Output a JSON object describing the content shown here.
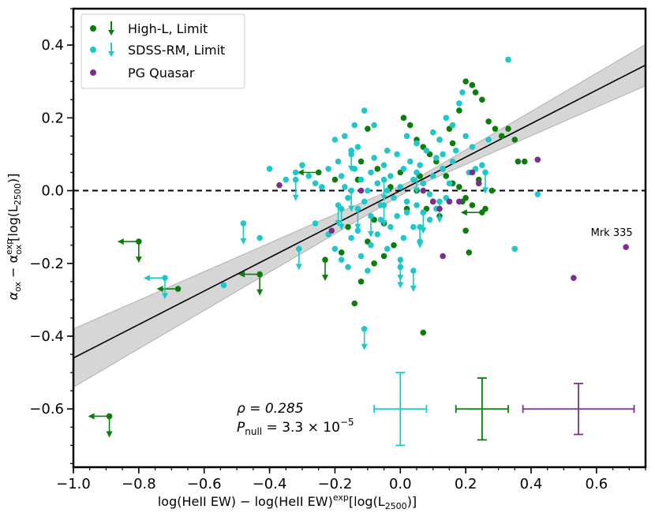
{
  "chart_data": {
    "type": "scatter",
    "xlabel": "log(HeII EW) − log(HeII EW)",
    "xlabel_sup": "exp",
    "xlabel_tail": "[log(L",
    "xlabel_sub": "2500",
    "xlabel_end": ")]",
    "ylabel_main": "α",
    "ylabel_sub1": "ox",
    "ylabel_mid": " − α",
    "ylabel_sup2": "exp",
    "ylabel_sub2": "ox",
    "ylabel_tail": "[log(L",
    "ylabel_sub3": "2500",
    "ylabel_end": ")]",
    "xlim": [
      -1.0,
      0.75
    ],
    "ylim": [
      -0.76,
      0.5
    ],
    "xticks": [
      -1.0,
      -0.8,
      -0.6,
      -0.4,
      -0.2,
      0.0,
      0.2,
      0.4,
      0.6
    ],
    "xtick_labels": [
      "−1.0",
      "−0.8",
      "−0.6",
      "−0.4",
      "−0.2",
      "0.0",
      "0.2",
      "0.4",
      "0.6"
    ],
    "yticks": [
      -0.6,
      -0.4,
      -0.2,
      0.0,
      0.2,
      0.4
    ],
    "ytick_labels": [
      "−0.6",
      "−0.4",
      "−0.2",
      "0.0",
      "0.2",
      "0.4"
    ],
    "legend": [
      {
        "label": "High-L, Limit",
        "color": "#0a7d0a"
      },
      {
        "label": "SDSS-RM, Limit",
        "color": "#1ec8c8"
      },
      {
        "label": "PG Quasar",
        "color": "#7a2f8f"
      }
    ],
    "legend_position": "top-left",
    "stats": {
      "rho_label": "ρ = 0.285",
      "p_label_main": "P",
      "p_label_sub": "null",
      "p_label_value": " = 3.3 × 10",
      "p_label_exp": "−5"
    },
    "annotations": [
      {
        "text": "Mrk 335",
        "x": 0.69,
        "y": -0.155
      }
    ],
    "fit": {
      "slope": 0.46,
      "intercept": 0.0,
      "band_halfwidth_at_edge": 0.07
    },
    "zero_line": 0.0,
    "series": [
      {
        "name": "High-L",
        "color": "#0a7d0a",
        "points": [
          [
            0.01,
            0.2
          ],
          [
            0.03,
            0.18
          ],
          [
            0.05,
            0.14
          ],
          [
            0.07,
            0.12
          ],
          [
            0.09,
            0.1
          ],
          [
            0.11,
            0.08
          ],
          [
            0.13,
            0.06
          ],
          [
            0.14,
            0.04
          ],
          [
            0.16,
            0.02
          ],
          [
            0.18,
            0.01
          ],
          [
            0.2,
            -0.02
          ],
          [
            0.22,
            -0.04
          ],
          [
            0.24,
            0.03
          ],
          [
            0.26,
            -0.05
          ],
          [
            0.28,
            0.0
          ],
          [
            0.12,
            0.14
          ],
          [
            0.15,
            0.17
          ],
          [
            0.18,
            0.22
          ],
          [
            0.2,
            0.3
          ],
          [
            0.22,
            0.29
          ],
          [
            0.23,
            0.27
          ],
          [
            0.25,
            0.25
          ],
          [
            0.27,
            0.19
          ],
          [
            0.29,
            0.17
          ],
          [
            0.31,
            0.15
          ],
          [
            0.33,
            0.17
          ],
          [
            0.35,
            0.14
          ],
          [
            0.36,
            0.08
          ],
          [
            0.38,
            0.08
          ],
          [
            0.2,
            -0.11
          ],
          [
            0.21,
            -0.17
          ],
          [
            -0.02,
            -0.15
          ],
          [
            -0.05,
            -0.18
          ],
          [
            -0.08,
            -0.2
          ],
          [
            -0.1,
            -0.14
          ],
          [
            -0.12,
            -0.25
          ],
          [
            -0.14,
            -0.31
          ],
          [
            -0.16,
            -0.1
          ],
          [
            -0.18,
            -0.17
          ],
          [
            -0.1,
            0.17
          ],
          [
            -0.12,
            0.08
          ],
          [
            -0.13,
            0.03
          ],
          [
            -0.05,
            -0.09
          ],
          [
            -0.03,
            0.01
          ],
          [
            0.0,
            0.05
          ],
          [
            0.06,
            0.04
          ],
          [
            0.08,
            -0.05
          ],
          [
            0.1,
            -0.03
          ],
          [
            0.07,
            -0.39
          ],
          [
            0.16,
            0.13
          ],
          [
            0.19,
            -0.03
          ],
          [
            0.12,
            -0.07
          ],
          [
            -0.07,
            0.06
          ],
          [
            0.02,
            -0.05
          ],
          [
            -0.2,
            0.03
          ],
          [
            -0.08,
            -0.08
          ],
          [
            0.05,
            0.0
          ]
        ],
        "limits": [
          [
            -0.8,
            -0.14,
            "both"
          ],
          [
            -0.68,
            -0.27,
            "left"
          ],
          [
            -0.43,
            -0.23,
            "both"
          ],
          [
            -0.25,
            0.05,
            "left"
          ],
          [
            -0.23,
            -0.19,
            "down"
          ],
          [
            0.25,
            -0.06,
            "left"
          ],
          [
            -0.89,
            -0.62,
            "both"
          ]
        ]
      },
      {
        "name": "SDSS-RM",
        "color": "#1ec8c8",
        "points": [
          [
            -0.4,
            0.06
          ],
          [
            -0.35,
            0.03
          ],
          [
            -0.32,
            0.05
          ],
          [
            -0.3,
            0.07
          ],
          [
            -0.28,
            0.04
          ],
          [
            -0.26,
            0.02
          ],
          [
            -0.24,
            0.01
          ],
          [
            -0.22,
            0.06
          ],
          [
            -0.2,
            0.14
          ],
          [
            -0.19,
            0.08
          ],
          [
            -0.18,
            0.04
          ],
          [
            -0.17,
            0.01
          ],
          [
            -0.16,
            -0.02
          ],
          [
            -0.15,
            0.1
          ],
          [
            -0.14,
            0.06
          ],
          [
            -0.13,
            0.12
          ],
          [
            -0.12,
            0.03
          ],
          [
            -0.11,
            -0.03
          ],
          [
            -0.1,
            0.0
          ],
          [
            -0.09,
            0.05
          ],
          [
            -0.08,
            0.09
          ],
          [
            -0.07,
            0.02
          ],
          [
            -0.06,
            -0.04
          ],
          [
            -0.05,
            0.07
          ],
          [
            -0.04,
            0.0
          ],
          [
            -0.03,
            0.04
          ],
          [
            -0.02,
            -0.02
          ],
          [
            -0.01,
            0.1
          ],
          [
            0.0,
            0.01
          ],
          [
            0.01,
            0.06
          ],
          [
            0.02,
            -0.03
          ],
          [
            0.03,
            0.08
          ],
          [
            0.04,
            0.03
          ],
          [
            0.05,
            -0.04
          ],
          [
            0.06,
            0.07
          ],
          [
            0.07,
            0.02
          ],
          [
            0.08,
            0.11
          ],
          [
            0.09,
            -0.01
          ],
          [
            0.1,
            0.04
          ],
          [
            0.11,
            0.09
          ],
          [
            0.12,
            0.14
          ],
          [
            0.13,
            0.06
          ],
          [
            0.14,
            -0.02
          ],
          [
            0.15,
            0.02
          ],
          [
            0.16,
            0.08
          ],
          [
            0.17,
            0.11
          ],
          [
            0.18,
            0.24
          ],
          [
            0.19,
            0.27
          ],
          [
            0.2,
            0.15
          ],
          [
            0.21,
            0.05
          ],
          [
            0.22,
            0.12
          ],
          [
            0.23,
            0.06
          ],
          [
            0.24,
            0.02
          ],
          [
            0.25,
            0.07
          ],
          [
            0.26,
            0.05
          ],
          [
            0.27,
            0.14
          ],
          [
            0.33,
            0.36
          ],
          [
            0.35,
            -0.16
          ],
          [
            0.42,
            -0.01
          ],
          [
            -0.54,
            -0.26
          ],
          [
            -0.43,
            -0.13
          ],
          [
            -0.26,
            -0.09
          ],
          [
            -0.22,
            -0.12
          ],
          [
            -0.2,
            -0.16
          ],
          [
            -0.18,
            -0.19
          ],
          [
            -0.16,
            -0.21
          ],
          [
            -0.15,
            -0.13
          ],
          [
            -0.13,
            -0.11
          ],
          [
            -0.12,
            -0.18
          ],
          [
            -0.1,
            -0.22
          ],
          [
            -0.09,
            -0.15
          ],
          [
            -0.07,
            -0.12
          ],
          [
            -0.06,
            -0.08
          ],
          [
            -0.04,
            -0.16
          ],
          [
            -0.03,
            -0.1
          ],
          [
            -0.01,
            -0.07
          ],
          [
            0.01,
            -0.13
          ],
          [
            0.02,
            -0.06
          ],
          [
            0.04,
            -0.1
          ],
          [
            0.06,
            -0.14
          ],
          [
            0.07,
            -0.06
          ],
          [
            0.09,
            -0.08
          ],
          [
            0.11,
            -0.05
          ],
          [
            0.13,
            0.1
          ],
          [
            0.14,
            0.2
          ],
          [
            0.16,
            0.18
          ],
          [
            0.1,
            0.16
          ],
          [
            -0.11,
            0.22
          ],
          [
            -0.08,
            0.18
          ],
          [
            -0.17,
            0.15
          ],
          [
            -0.14,
            0.18
          ],
          [
            -0.04,
            0.11
          ],
          [
            0.05,
            0.13
          ],
          [
            0.02,
            0.15
          ]
        ],
        "limits": [
          [
            -0.72,
            -0.24,
            "both"
          ],
          [
            -0.48,
            -0.09,
            "down"
          ],
          [
            -0.31,
            -0.16,
            "down"
          ],
          [
            -0.32,
            0.03,
            "down"
          ],
          [
            -0.19,
            -0.04,
            "down"
          ],
          [
            -0.18,
            -0.05,
            "down"
          ],
          [
            -0.15,
            0.0,
            "down"
          ],
          [
            -0.15,
            0.11,
            "down"
          ],
          [
            -0.13,
            -0.05,
            "down"
          ],
          [
            -0.11,
            -0.38,
            "down"
          ],
          [
            -0.09,
            -0.07,
            "down"
          ],
          [
            -0.05,
            -0.04,
            "down"
          ],
          [
            0.0,
            -0.19,
            "down"
          ],
          [
            0.0,
            -0.21,
            "down"
          ],
          [
            0.04,
            -0.22,
            "down"
          ],
          [
            0.05,
            0.05,
            "down"
          ],
          [
            0.06,
            -0.1,
            "down"
          ],
          [
            0.07,
            -0.06,
            "down"
          ],
          [
            0.12,
            -0.03,
            "down"
          ],
          [
            -0.05,
            0.03,
            "down"
          ],
          [
            0.26,
            0.05,
            "down"
          ]
        ]
      },
      {
        "name": "PG Quasar",
        "color": "#7a2f8f",
        "points": [
          [
            -0.37,
            0.015
          ],
          [
            -0.21,
            -0.11
          ],
          [
            -0.12,
            0.0
          ],
          [
            0.07,
            0.0
          ],
          [
            0.1,
            -0.03
          ],
          [
            0.12,
            -0.05
          ],
          [
            0.13,
            -0.18
          ],
          [
            0.15,
            -0.03
          ],
          [
            0.18,
            -0.03
          ],
          [
            0.22,
            0.05
          ],
          [
            0.24,
            0.02
          ],
          [
            0.42,
            0.085
          ],
          [
            0.53,
            -0.24
          ],
          [
            0.69,
            -0.155
          ]
        ]
      }
    ],
    "error_bars": [
      {
        "color": "#1ec8c8",
        "x": 0.0,
        "y": -0.6,
        "xerr": 0.08,
        "yerr": 0.1
      },
      {
        "color": "#0a7d0a",
        "x": 0.25,
        "y": -0.6,
        "xerr": 0.08,
        "yerr": 0.085
      },
      {
        "color": "#7a2f8f",
        "x": 0.545,
        "y": -0.6,
        "xerr": 0.17,
        "yerr": 0.07
      }
    ]
  }
}
